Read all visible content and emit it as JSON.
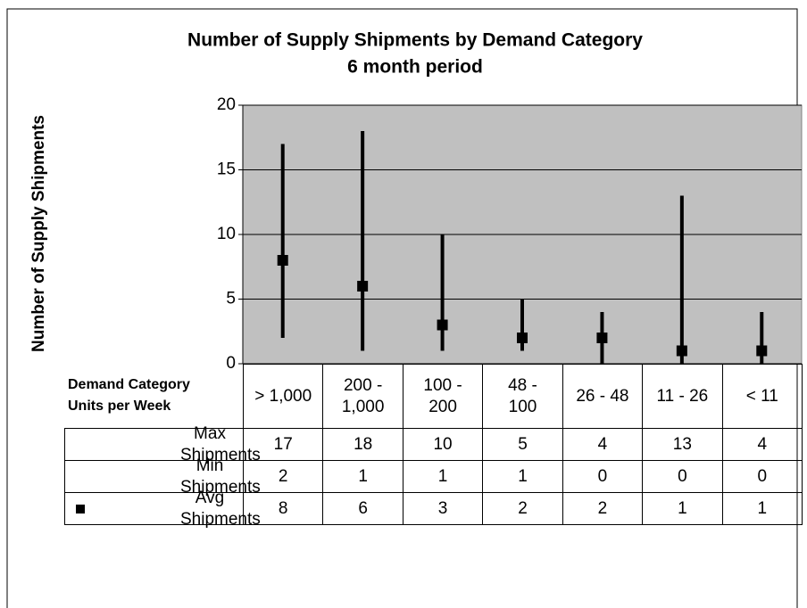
{
  "chart_data": {
    "type": "hilo",
    "title": "Number of Supply Shipments by Demand Category",
    "subtitle": "6 month period",
    "y_label": "Number of Supply Shipments",
    "x_label": "Demand Category Units per Week",
    "categories": [
      "> 1,000",
      "200 - 1,000",
      "100 - 200",
      "48 - 100",
      "26 - 48",
      "11 - 26",
      "< 11"
    ],
    "series": [
      {
        "name": "Max Shipments",
        "role": "high",
        "color": "#000000",
        "values": [
          17,
          18,
          10,
          5,
          4,
          13,
          4
        ]
      },
      {
        "name": "Min Shipments",
        "role": "low",
        "color": "#000000",
        "values": [
          2,
          1,
          1,
          1,
          0,
          0,
          0
        ]
      },
      {
        "name": "Avg Shipments",
        "role": "close",
        "color": "#000000",
        "values": [
          8,
          6,
          3,
          2,
          2,
          1,
          1
        ]
      }
    ],
    "ylim": [
      0,
      20
    ],
    "yticks": [
      0,
      5,
      10,
      15,
      20
    ],
    "grid": true,
    "plot_background": "#c0c0c0"
  }
}
